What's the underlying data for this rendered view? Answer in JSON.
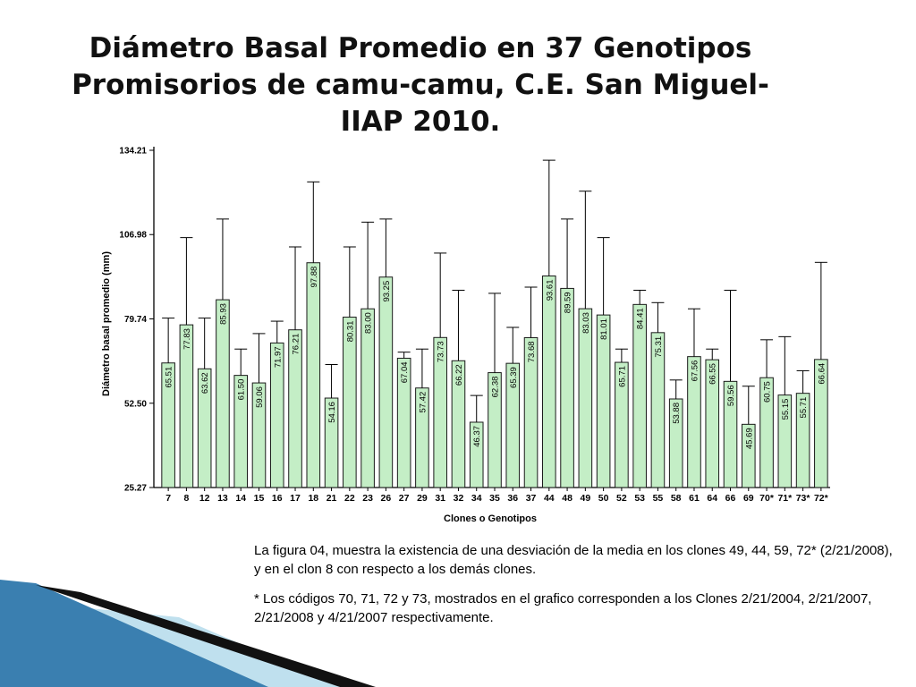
{
  "slide": {
    "title": "Diámetro Basal Promedio en 37 Genotipos Promisorios de camu-camu, C.E. San Miguel-IIAP 2010.",
    "paragraph_1": "La figura 04, muestra la existencia de una desviación de la media en los clones 49, 44, 59, 72* (2/21/2008),  y en el clon 8 con respecto a los demás clones.",
    "paragraph_2": "* Los códigos 70, 71, 72 y 73,  mostrados en el grafico corresponden a los Clones  2/21/2004, 2/21/2007, 2/21/2008 y 4/21/2007 respectivamente."
  },
  "colors": {
    "bar_fill": "#c4eec6",
    "bar_stroke": "#1a1a1a",
    "decor_blue": "#3a7fb0",
    "decor_light": "#bfe0ee",
    "decor_dark": "#111111"
  },
  "chart_data": {
    "type": "bar",
    "title": "",
    "xlabel": "Clones o Genotipos",
    "ylabel": "Diámetro basal promedio (mm)",
    "ylim": [
      25.27,
      134.21
    ],
    "yticks": [
      "25.27",
      "52.50",
      "79.74",
      "106.98",
      "134.21"
    ],
    "categories": [
      "7",
      "8",
      "12",
      "13",
      "14",
      "15",
      "16",
      "17",
      "18",
      "21",
      "22",
      "23",
      "26",
      "27",
      "29",
      "31",
      "32",
      "34",
      "35",
      "36",
      "37",
      "44",
      "48",
      "49",
      "50",
      "52",
      "53",
      "55",
      "58",
      "61",
      "64",
      "66",
      "69",
      "70*",
      "71*",
      "73*",
      "72*"
    ],
    "values": [
      65.51,
      77.83,
      63.62,
      85.93,
      61.5,
      59.06,
      71.97,
      76.21,
      97.88,
      54.16,
      80.31,
      83.0,
      93.25,
      67.04,
      57.42,
      73.73,
      66.22,
      46.37,
      62.38,
      65.39,
      73.68,
      93.61,
      89.59,
      83.03,
      81.01,
      65.71,
      84.41,
      75.31,
      53.88,
      67.56,
      66.55,
      59.56,
      45.69,
      60.75,
      55.15,
      55.71,
      66.64
    ],
    "value_labels": [
      "65.51",
      "77.83",
      "63.62",
      "85.93",
      "61.50",
      "59.06",
      "71.97",
      "76.21",
      "97.88",
      "54.16",
      "80.31",
      "83.00",
      "93.25",
      "67.04",
      "57.42",
      "73.73",
      "66.22",
      "46.37",
      "62.38",
      "65.39",
      "73.68",
      "93.61",
      "89.59",
      "83.03",
      "81.01",
      "65.71",
      "84.41",
      "75.31",
      "53.88",
      "67.56",
      "66.55",
      "59.56",
      "45.69",
      "60.75",
      "55.15",
      "55.71",
      "66.64"
    ],
    "error_upper": [
      80,
      106,
      80,
      112,
      70,
      75,
      79,
      103,
      124,
      65,
      103,
      111,
      112,
      69,
      70,
      101,
      89,
      55,
      88,
      77,
      90,
      131,
      112,
      121,
      106,
      70,
      89,
      85,
      60,
      83,
      70,
      89,
      58,
      73,
      74,
      63,
      98
    ]
  }
}
